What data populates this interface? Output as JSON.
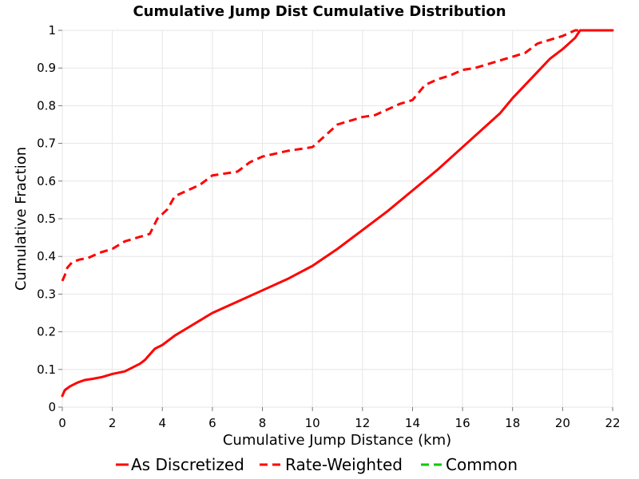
{
  "chart_data": {
    "type": "line",
    "title": "Cumulative Jump Dist Cumulative Distribution",
    "xlabel": "Cumulative Jump Distance (km)",
    "ylabel": "Cumulative Fraction",
    "xlim": [
      0,
      22
    ],
    "ylim": [
      0,
      1
    ],
    "grid": true,
    "legend_position": "bottom",
    "x_ticks": [
      "0",
      "2",
      "4",
      "6",
      "8",
      "10",
      "12",
      "14",
      "16",
      "18",
      "20",
      "22"
    ],
    "y_ticks": [
      "0",
      "0.1",
      "0.2",
      "0.3",
      "0.4",
      "0.5",
      "0.6",
      "0.7",
      "0.8",
      "0.9",
      "1"
    ],
    "series": [
      {
        "name": "As Discretized",
        "color": "#ff0000",
        "line_style": "solid",
        "x": [
          0,
          0.1,
          0.3,
          0.6,
          0.9,
          1.2,
          1.6,
          2.0,
          2.5,
          2.8,
          3.1,
          3.3,
          3.5,
          3.7,
          4.0,
          4.5,
          5.0,
          5.5,
          6.0,
          7.0,
          8.0,
          9.0,
          10.0,
          11.0,
          12.0,
          13.0,
          14.0,
          15.0,
          16.0,
          17.0,
          17.5,
          18.0,
          18.5,
          19.0,
          19.5,
          20.0,
          20.5,
          20.7,
          21.0,
          22.0
        ],
        "y": [
          0.03,
          0.045,
          0.055,
          0.065,
          0.072,
          0.075,
          0.08,
          0.088,
          0.095,
          0.105,
          0.115,
          0.125,
          0.14,
          0.155,
          0.165,
          0.19,
          0.21,
          0.23,
          0.25,
          0.28,
          0.31,
          0.34,
          0.375,
          0.42,
          0.47,
          0.52,
          0.575,
          0.63,
          0.69,
          0.75,
          0.78,
          0.82,
          0.855,
          0.89,
          0.925,
          0.95,
          0.98,
          1.0,
          1.0,
          1.0
        ]
      },
      {
        "name": "Rate-Weighted",
        "color": "#ff0000",
        "line_style": "dashed",
        "x": [
          0,
          0.1,
          0.2,
          0.4,
          0.7,
          1.0,
          1.5,
          2.0,
          2.5,
          3.0,
          3.5,
          3.8,
          4.2,
          4.5,
          5.0,
          5.5,
          6.0,
          7.0,
          7.5,
          8.0,
          9.0,
          10.0,
          10.5,
          11.0,
          11.5,
          12.0,
          12.5,
          13.0,
          13.5,
          14.0,
          14.5,
          15.0,
          15.5,
          16.0,
          16.5,
          17.0,
          17.5,
          18.0,
          18.5,
          19.0,
          19.5,
          20.0,
          20.5,
          21.0,
          22.0
        ],
        "y": [
          0.335,
          0.35,
          0.37,
          0.385,
          0.392,
          0.395,
          0.41,
          0.42,
          0.44,
          0.45,
          0.46,
          0.5,
          0.525,
          0.56,
          0.575,
          0.59,
          0.615,
          0.625,
          0.65,
          0.665,
          0.68,
          0.69,
          0.72,
          0.75,
          0.76,
          0.77,
          0.775,
          0.79,
          0.805,
          0.815,
          0.855,
          0.87,
          0.88,
          0.895,
          0.9,
          0.91,
          0.92,
          0.93,
          0.94,
          0.965,
          0.975,
          0.985,
          1.0,
          1.0,
          1.0
        ]
      },
      {
        "name": "Common",
        "color": "#00cc00",
        "line_style": "dashed",
        "x": [],
        "y": []
      }
    ]
  }
}
